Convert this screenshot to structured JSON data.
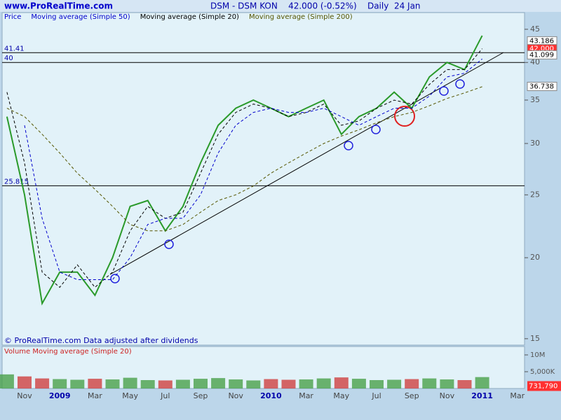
{
  "header": {
    "site": "www.ProRealTime.com",
    "quote": "DSM - DSM KON    42.000 (-0.52%)    Daily  24 Jan"
  },
  "footer": "© ProRealTime.com  Data adjusted after dividends",
  "chart_data": [
    {
      "type": "line",
      "log_scale": true,
      "legend": [
        {
          "name": "Price",
          "color": "#0000cc"
        },
        {
          "name": "Moving average (Simple 50)",
          "color": "#0000cc"
        },
        {
          "name": "Moving average (Simple 20)",
          "color": "#000000"
        },
        {
          "name": "Moving average (Simple 200)",
          "color": "#555500"
        }
      ],
      "categories": [
        null,
        "Nov",
        null,
        "2009",
        null,
        "Mar",
        null,
        "May",
        null,
        "Jul",
        null,
        "Sep",
        null,
        "Nov",
        null,
        "2010",
        null,
        "Mar",
        null,
        "May",
        null,
        "Jul",
        null,
        "Sep",
        null,
        "Nov",
        null,
        "2011",
        null,
        "Mar"
      ],
      "series": [
        {
          "name": "Price",
          "color": "#2a9a2a",
          "values": [
            33,
            25,
            17,
            19,
            19,
            17.5,
            20,
            24,
            24.5,
            22,
            24,
            28,
            32,
            34,
            35,
            34,
            33,
            34,
            35,
            31,
            33,
            34,
            36,
            34,
            38,
            40,
            39,
            44,
            null,
            null
          ]
        },
        {
          "name": "Moving average (Simple 20)",
          "color": "#000000",
          "values": [
            36,
            28,
            19,
            18,
            19.5,
            18,
            19,
            22,
            24,
            23,
            23.5,
            27,
            31,
            33.5,
            34.5,
            34,
            33,
            33.5,
            34.5,
            32,
            32.5,
            34,
            35,
            34.5,
            37,
            39,
            39,
            42,
            null,
            null
          ]
        },
        {
          "name": "Moving average (Simple 50)",
          "color": "#0000cc",
          "values": [
            null,
            32,
            23,
            19,
            18.5,
            18.5,
            18.5,
            20,
            22.5,
            23,
            23,
            25,
            29,
            32,
            33.5,
            34,
            33.5,
            33.5,
            34,
            33,
            32,
            33,
            34,
            34,
            35.5,
            38,
            38.5,
            40.5,
            null,
            null
          ]
        },
        {
          "name": "Moving average (Simple 200)",
          "color": "#555500",
          "values": [
            34,
            33,
            31,
            29,
            27,
            25.5,
            24,
            22.5,
            22,
            22,
            22.5,
            23.5,
            24.5,
            25,
            25.8,
            27,
            28,
            29,
            30,
            30.8,
            31.5,
            32.3,
            33,
            33.5,
            34.3,
            35.2,
            35.9,
            36.7,
            null,
            null
          ]
        }
      ],
      "ylim": [
        14.7,
        46
      ],
      "yticks": [
        15,
        20,
        25,
        30,
        35,
        40,
        45
      ],
      "levels": [
        {
          "value": 41.41,
          "label": "41.41"
        },
        {
          "value": 40,
          "label": "40"
        },
        {
          "value": 25.815,
          "label": "25.815"
        }
      ],
      "price_labels": [
        {
          "value": 43.186,
          "label": "43.186"
        },
        {
          "value": 42,
          "label": "42.000"
        },
        {
          "value": 41.099,
          "label": "41.099"
        },
        {
          "value": 36.738,
          "label": "36.738"
        }
      ]
    },
    {
      "type": "bar",
      "title": "Volume Moving average (Simple 20)",
      "values": [
        4200000,
        3600000,
        3000000,
        2800000,
        2600000,
        2900000,
        2700000,
        3200000,
        2500000,
        2400000,
        2600000,
        2900000,
        3100000,
        2700000,
        2400000,
        2800000,
        2600000,
        2700000,
        3000000,
        3300000,
        2900000,
        2500000,
        2600000,
        2800000,
        3000000,
        2700000,
        2500000,
        3400000,
        null,
        null
      ],
      "ylim": [
        0,
        12500000
      ],
      "yticks": [
        {
          "value": 10000000,
          "label": "10M"
        },
        {
          "value": 5000000,
          "label": "5,000K"
        }
      ],
      "last": {
        "value": 731790,
        "label": "731,790"
      }
    }
  ]
}
